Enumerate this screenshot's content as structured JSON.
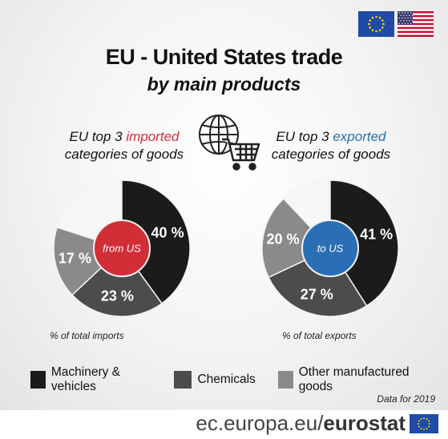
{
  "title": "EU - United States trade",
  "subtitle": "by main products",
  "imports_title": {
    "line1_pre": "EU top 3 ",
    "line1_hl": "imported",
    "line2": "categories of goods"
  },
  "exports_title": {
    "line1_pre": "EU top 3 ",
    "line1_hl": "exported",
    "line2": "categories of goods"
  },
  "imports_center": "from US",
  "exports_center": "to US",
  "imports_note": "% of total imports",
  "exports_note": "% of total exports",
  "source": "Data for 2019",
  "footer": {
    "domain": "ec.europa.eu/",
    "brand": "eurostat"
  },
  "colors": {
    "machinery": "#1b1b1b",
    "chemicals": "#4c4c4c",
    "other": "#8a8a8a",
    "rest": "#f7f7f7",
    "import_accent": "#d22e38",
    "export_accent": "#2a6fb5"
  },
  "chart_data": [
    {
      "type": "pie",
      "name": "imports",
      "categories": [
        "Machinery & vehicles",
        "Chemicals",
        "Other manufactured goods"
      ],
      "values": [
        40,
        23,
        17
      ],
      "labels": [
        "40 %",
        "23 %",
        "17 %"
      ]
    },
    {
      "type": "pie",
      "name": "exports",
      "categories": [
        "Machinery & vehicles",
        "Chemicals",
        "Other manufactured goods"
      ],
      "values": [
        41,
        27,
        20
      ],
      "labels": [
        "41 %",
        "27 %",
        "20 %"
      ]
    }
  ],
  "legend": [
    {
      "label": "Machinery & vehicles",
      "color": "#1b1b1b"
    },
    {
      "label": "Chemicals",
      "color": "#4c4c4c"
    },
    {
      "label": "Other manufactured goods",
      "color": "#8a8a8a"
    }
  ],
  "icons": {
    "eu_flag": "eu-flag-icon",
    "us_flag": "us-flag-icon",
    "trade": "globe-cart-icon",
    "eu_logo": "eu-logo-icon"
  }
}
